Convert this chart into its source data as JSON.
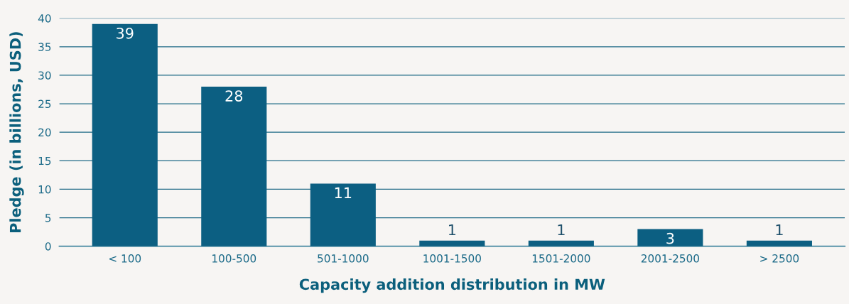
{
  "chart_data": {
    "type": "bar",
    "xlabel": "Capacity addition distribution in MW",
    "ylabel": "Pledge (in billions, USD)",
    "categories": [
      "< 100",
      "100-500",
      "501-1000",
      "1001-1500",
      "1501-2000",
      "2001-2500",
      "> 2500"
    ],
    "values": [
      39,
      28,
      11,
      1,
      1,
      3,
      1
    ],
    "color": "#0c5f82",
    "ylim": [
      0,
      40
    ],
    "yticks": [
      0,
      5,
      10,
      15,
      20,
      25,
      30,
      35,
      40
    ],
    "grid": "y",
    "data_labels": true,
    "legend": false
  }
}
